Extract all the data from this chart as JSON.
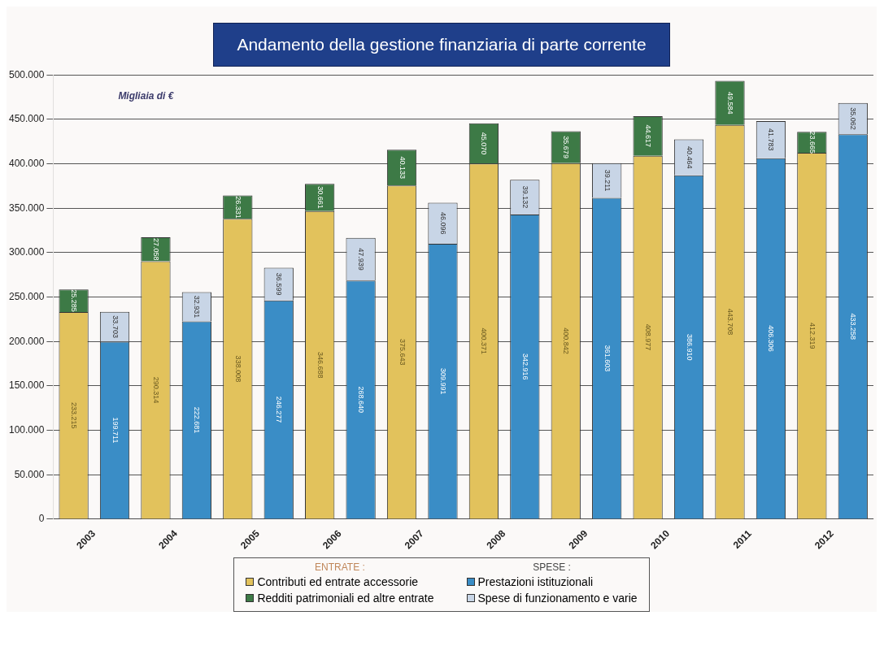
{
  "chart_data": {
    "type": "bar",
    "title": "Andamento della gestione finanziaria di parte corrente",
    "annotations": [
      "Migliaia di €",
      "ENTRATE :",
      "SPESE :"
    ],
    "categories": [
      "2003",
      null,
      "2004",
      null,
      "2005",
      null,
      "2006",
      null,
      "2007",
      null,
      "2008",
      null,
      "2009",
      null,
      "2010",
      null,
      "2011",
      null,
      "2012",
      null
    ],
    "stacked": true,
    "legend": "bottom",
    "grid": "y",
    "ylim": [
      0,
      500000
    ],
    "yticks": [
      {
        "value": 0,
        "label": "0"
      },
      {
        "value": 50000,
        "label": "50.000"
      },
      {
        "value": 100000,
        "label": "100.000"
      },
      {
        "value": 150000,
        "label": "150.000"
      },
      {
        "value": 200000,
        "label": "200.000"
      },
      {
        "value": 250000,
        "label": "250.000"
      },
      {
        "value": 300000,
        "label": "300.000"
      },
      {
        "value": 350000,
        "label": "350.000"
      },
      {
        "value": 400000,
        "label": "400.000"
      },
      {
        "value": 450000,
        "label": "450.000"
      },
      {
        "value": 500000,
        "label": "500.000"
      }
    ],
    "series": [
      {
        "name": "Contributi ed entrate accessorie",
        "color": "#e2c25c",
        "values": [
          233215,
          null,
          290314,
          null,
          338008,
          null,
          346688,
          null,
          375643,
          null,
          400371,
          null,
          400842,
          null,
          408977,
          null,
          443708,
          null,
          412319,
          null
        ],
        "value_labels": [
          "233.215",
          null,
          "290.314",
          null,
          "338.008",
          null,
          "346.688",
          null,
          "375.643",
          null,
          "400.371",
          null,
          "400.842",
          null,
          "408.977",
          null,
          "443.708",
          null,
          "412.319",
          null
        ]
      },
      {
        "name": "Redditi patrimoniali ed altre entrate",
        "color": "#3d7a46",
        "values": [
          25285,
          null,
          27058,
          null,
          26331,
          null,
          30661,
          null,
          40133,
          null,
          45070,
          null,
          35679,
          null,
          44617,
          null,
          49584,
          null,
          23665,
          null
        ],
        "value_labels": [
          "25.285",
          null,
          "27.058",
          null,
          "26.331",
          null,
          "30.661",
          null,
          "40.133",
          null,
          "45.070",
          null,
          "35.679",
          null,
          "44.617",
          null,
          "49.584",
          null,
          "23.665",
          null
        ]
      },
      {
        "name": "Prestazioni istituzionali",
        "color": "#3a8dc6",
        "values": [
          null,
          199711,
          null,
          222681,
          null,
          246277,
          null,
          268640,
          null,
          309991,
          null,
          342916,
          null,
          361603,
          null,
          386910,
          null,
          406306,
          null,
          433258
        ],
        "value_labels": [
          null,
          "199.711",
          null,
          "222.681",
          null,
          "246.277",
          null,
          "268.640",
          null,
          "309.991",
          null,
          "342.916",
          null,
          "361.603",
          null,
          "386.910",
          null,
          "406.306",
          null,
          "433.258"
        ]
      },
      {
        "name": "Spese di funzionamento e varie",
        "color": "#c8d5e6",
        "values": [
          null,
          33703,
          null,
          32931,
          null,
          36599,
          null,
          47939,
          null,
          46096,
          null,
          39132,
          null,
          39211,
          null,
          40464,
          null,
          41783,
          null,
          35062
        ],
        "value_labels": [
          null,
          "33.703",
          null,
          "32.931",
          null,
          "36.599",
          null,
          "47.939",
          null,
          "46.096",
          null,
          "39.132",
          null,
          "39.211",
          null,
          "40.464",
          null,
          "41.783",
          null,
          "35.062"
        ]
      }
    ]
  }
}
